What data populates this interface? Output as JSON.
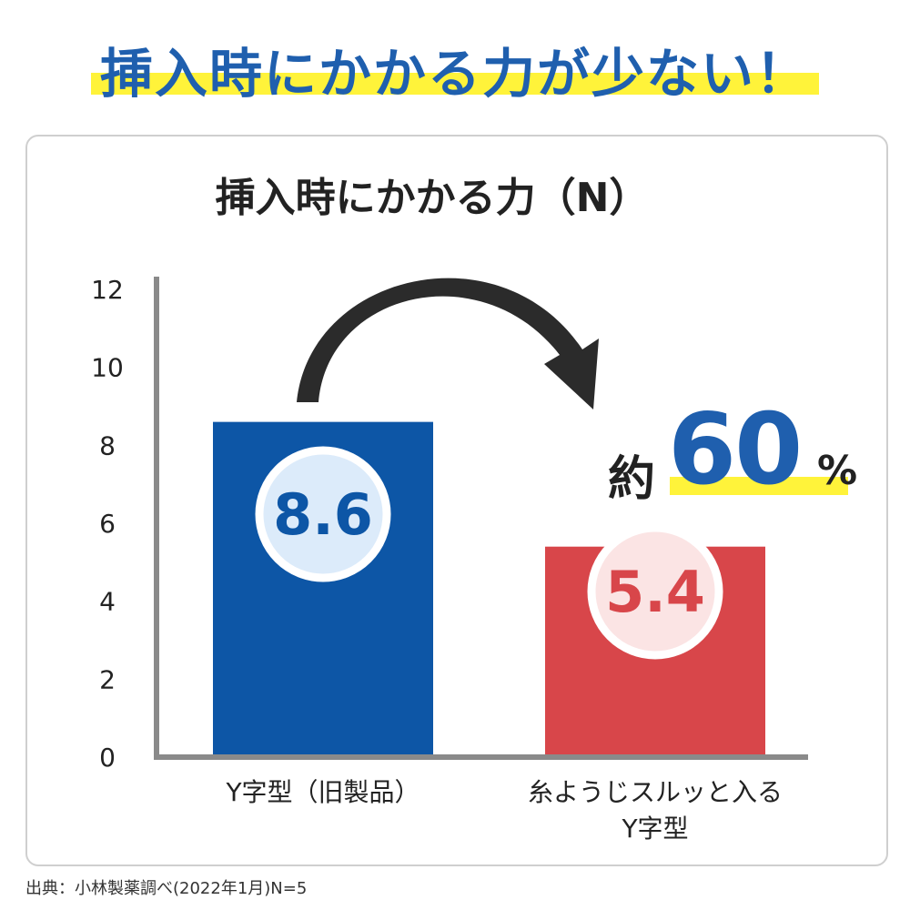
{
  "headline": "挿入時にかかる力が少ない！",
  "reduction": {
    "prefix": "約",
    "value": "60",
    "unit": "%"
  },
  "source_note": "出典：小林製薬調べ(2022年1月)N=5",
  "colors": {
    "brand_blue": "#1f5fae",
    "bar_blue": "#0d56a6",
    "bar_red": "#d8464a",
    "highlight_yellow": "#fff33a"
  },
  "chart_data": {
    "type": "bar",
    "title": "挿入時にかかる力（N）",
    "categories": [
      "Y字型（旧製品）",
      "糸ようじスルッと入る\nY字型"
    ],
    "values": [
      8.6,
      5.4
    ],
    "value_labels": [
      "8.6",
      "5.4"
    ],
    "bar_colors": [
      "#0d56a6",
      "#d8464a"
    ],
    "ylim": [
      0,
      12
    ],
    "yticks": [
      0,
      2,
      4,
      6,
      8,
      10,
      12
    ],
    "xlabel": "",
    "ylabel": "",
    "grid": false,
    "legend": "none"
  }
}
